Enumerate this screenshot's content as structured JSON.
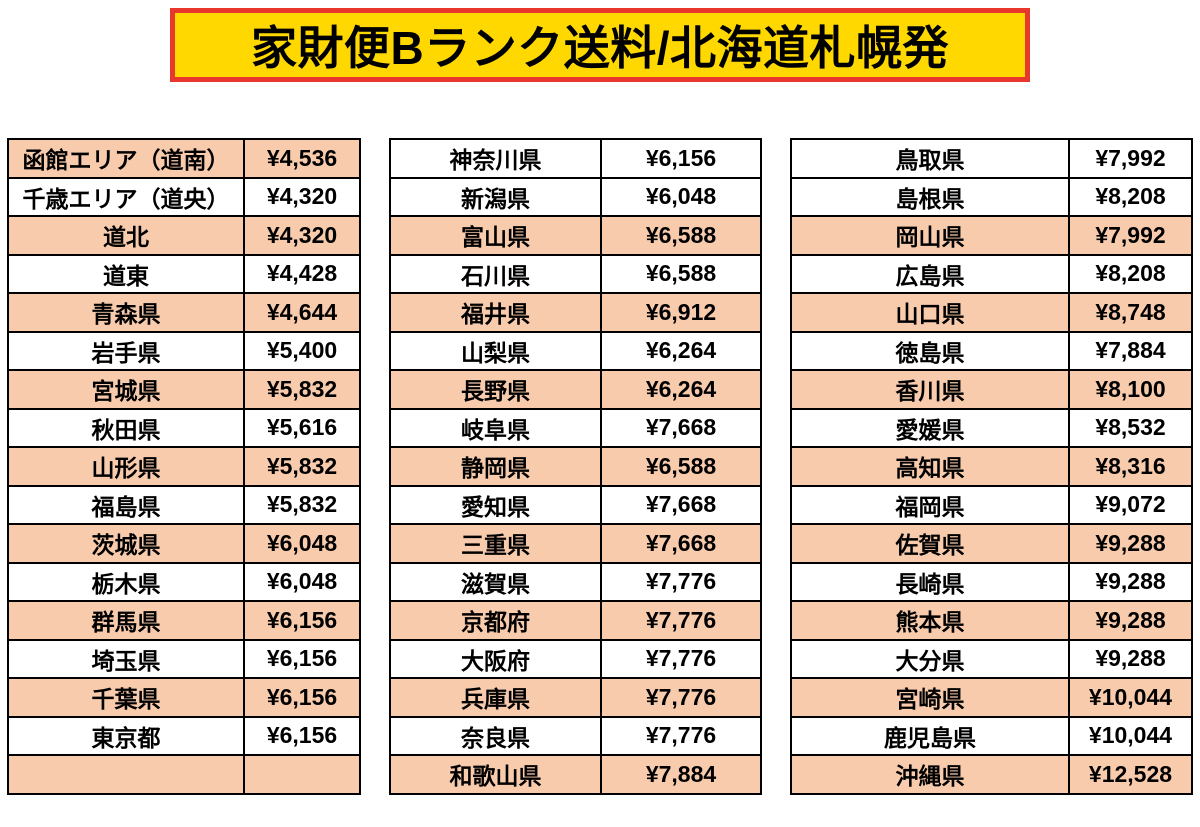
{
  "title_banner": {
    "title": "家財便Bランク送料/北海道札幌発"
  },
  "colors": {
    "page_bg": "#ffffff",
    "banner_bg": "#ffd800",
    "banner_border": "#e8382d",
    "row_shaded": "#f8cbad",
    "row_plain": "#ffffff",
    "grid": "#000000",
    "text": "#000000"
  },
  "chart_data": {
    "type": "table",
    "title": "家財便Bランク送料/北海道札幌発",
    "tables": [
      {
        "name": "hokkaido-tohoku-kanto",
        "rows": [
          {
            "region": "函館エリア（道南）",
            "price": "¥4,536",
            "shaded": true
          },
          {
            "region": "千歳エリア（道央）",
            "price": "¥4,320",
            "shaded": false
          },
          {
            "region": "道北",
            "price": "¥4,320",
            "shaded": true
          },
          {
            "region": "道東",
            "price": "¥4,428",
            "shaded": false
          },
          {
            "region": "青森県",
            "price": "¥4,644",
            "shaded": true
          },
          {
            "region": "岩手県",
            "price": "¥5,400",
            "shaded": false
          },
          {
            "region": "宮城県",
            "price": "¥5,832",
            "shaded": true
          },
          {
            "region": "秋田県",
            "price": "¥5,616",
            "shaded": false
          },
          {
            "region": "山形県",
            "price": "¥5,832",
            "shaded": true
          },
          {
            "region": "福島県",
            "price": "¥5,832",
            "shaded": false
          },
          {
            "region": "茨城県",
            "price": "¥6,048",
            "shaded": true
          },
          {
            "region": "栃木県",
            "price": "¥6,048",
            "shaded": false
          },
          {
            "region": "群馬県",
            "price": "¥6,156",
            "shaded": true
          },
          {
            "region": "埼玉県",
            "price": "¥6,156",
            "shaded": false
          },
          {
            "region": "千葉県",
            "price": "¥6,156",
            "shaded": true
          },
          {
            "region": "東京都",
            "price": "¥6,156",
            "shaded": false
          },
          {
            "region": "",
            "price": "",
            "shaded": true
          }
        ]
      },
      {
        "name": "chubu-kansai",
        "rows": [
          {
            "region": "神奈川県",
            "price": "¥6,156",
            "shaded": false
          },
          {
            "region": "新潟県",
            "price": "¥6,048",
            "shaded": false
          },
          {
            "region": "富山県",
            "price": "¥6,588",
            "shaded": true
          },
          {
            "region": "石川県",
            "price": "¥6,588",
            "shaded": false
          },
          {
            "region": "福井県",
            "price": "¥6,912",
            "shaded": true
          },
          {
            "region": "山梨県",
            "price": "¥6,264",
            "shaded": false
          },
          {
            "region": "長野県",
            "price": "¥6,264",
            "shaded": true
          },
          {
            "region": "岐阜県",
            "price": "¥7,668",
            "shaded": false
          },
          {
            "region": "静岡県",
            "price": "¥6,588",
            "shaded": true
          },
          {
            "region": "愛知県",
            "price": "¥7,668",
            "shaded": false
          },
          {
            "region": "三重県",
            "price": "¥7,668",
            "shaded": true
          },
          {
            "region": "滋賀県",
            "price": "¥7,776",
            "shaded": false
          },
          {
            "region": "京都府",
            "price": "¥7,776",
            "shaded": true
          },
          {
            "region": "大阪府",
            "price": "¥7,776",
            "shaded": false
          },
          {
            "region": "兵庫県",
            "price": "¥7,776",
            "shaded": true
          },
          {
            "region": "奈良県",
            "price": "¥7,776",
            "shaded": false
          },
          {
            "region": "和歌山県",
            "price": "¥7,884",
            "shaded": true
          }
        ]
      },
      {
        "name": "chugoku-shikoku-kyushu-okinawa",
        "rows": [
          {
            "region": "鳥取県",
            "price": "¥7,992",
            "shaded": false
          },
          {
            "region": "島根県",
            "price": "¥8,208",
            "shaded": false
          },
          {
            "region": "岡山県",
            "price": "¥7,992",
            "shaded": true
          },
          {
            "region": "広島県",
            "price": "¥8,208",
            "shaded": false
          },
          {
            "region": "山口県",
            "price": "¥8,748",
            "shaded": true
          },
          {
            "region": "徳島県",
            "price": "¥7,884",
            "shaded": false
          },
          {
            "region": "香川県",
            "price": "¥8,100",
            "shaded": true
          },
          {
            "region": "愛媛県",
            "price": "¥8,532",
            "shaded": false
          },
          {
            "region": "高知県",
            "price": "¥8,316",
            "shaded": true
          },
          {
            "region": "福岡県",
            "price": "¥9,072",
            "shaded": false
          },
          {
            "region": "佐賀県",
            "price": "¥9,288",
            "shaded": true
          },
          {
            "region": "長崎県",
            "price": "¥9,288",
            "shaded": false
          },
          {
            "region": "熊本県",
            "price": "¥9,288",
            "shaded": true
          },
          {
            "region": "大分県",
            "price": "¥9,288",
            "shaded": false
          },
          {
            "region": "宮崎県",
            "price": "¥10,044",
            "shaded": true
          },
          {
            "region": "鹿児島県",
            "price": "¥10,044",
            "shaded": false
          },
          {
            "region": "沖縄県",
            "price": "¥12,528",
            "shaded": true
          }
        ]
      }
    ]
  }
}
